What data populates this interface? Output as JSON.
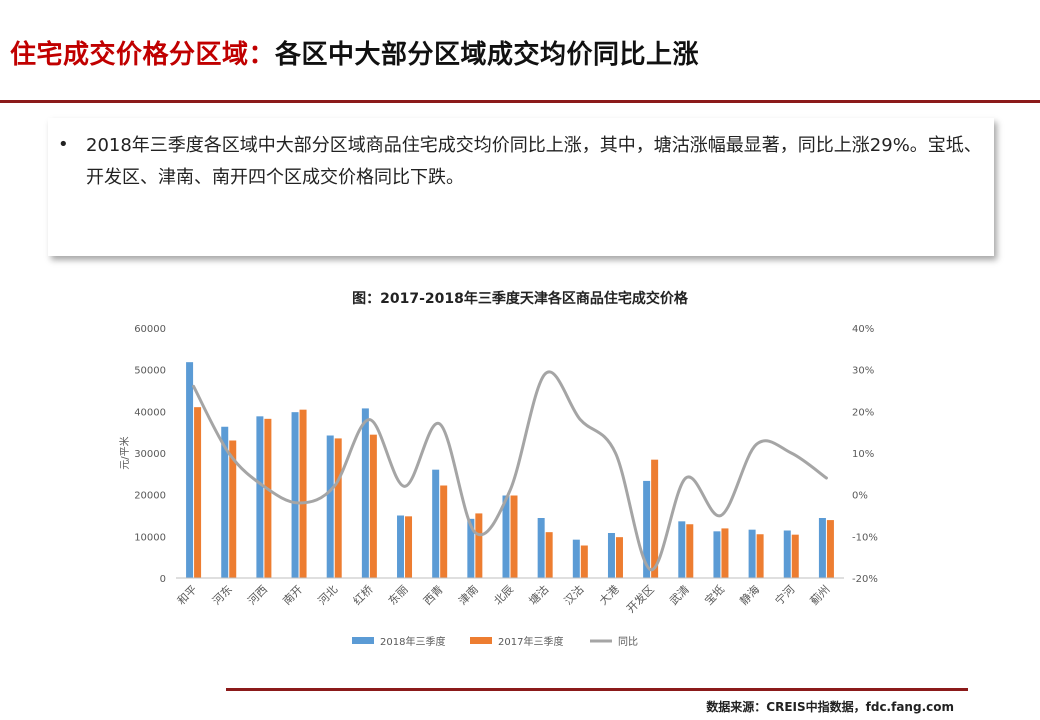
{
  "header": {
    "title_red": "住宅成交价格分区域：",
    "title_black": "各区中大部分区域成交均价同比上涨"
  },
  "note": {
    "bullet": "•",
    "text": "2018年三季度各区域中大部分区域商品住宅成交均价同比上涨，其中，塘沽涨幅最显著，同比上涨29%。宝坻、开发区、津南、南开四个区成交价格同比下跌。"
  },
  "chart_title": "图：2017-2018年三季度天津各区商品住宅成交价格",
  "chart_data": {
    "type": "bar",
    "title": "图：2017-2018年三季度天津各区商品住宅成交价格",
    "categories": [
      "和平",
      "河东",
      "河西",
      "南开",
      "河北",
      "红桥",
      "东丽",
      "西青",
      "津南",
      "北辰",
      "塘沽",
      "汉沽",
      "大港",
      "开发区",
      "武清",
      "宝坻",
      "静海",
      "宁河",
      "蓟州"
    ],
    "series": [
      {
        "name": "2018年三季度",
        "axis": "left",
        "kind": "bar",
        "color": "#5b9bd5",
        "values": [
          51800,
          36300,
          38800,
          39800,
          34200,
          40700,
          15000,
          26000,
          14200,
          19800,
          14400,
          9200,
          10800,
          23300,
          13600,
          11200,
          11600,
          11400,
          14400
        ]
      },
      {
        "name": "2017年三季度",
        "axis": "left",
        "kind": "bar",
        "color": "#ed7d31",
        "values": [
          41000,
          33000,
          38200,
          40400,
          33500,
          34400,
          14800,
          22200,
          15500,
          19800,
          11000,
          7800,
          9800,
          28400,
          12900,
          11900,
          10500,
          10400,
          13900
        ]
      },
      {
        "name": "同比",
        "axis": "right",
        "kind": "line",
        "color": "#a5a5a5",
        "values": [
          0.26,
          0.1,
          0.02,
          -0.02,
          0.02,
          0.18,
          0.02,
          0.17,
          -0.09,
          0.01,
          0.29,
          0.18,
          0.1,
          -0.18,
          0.04,
          -0.05,
          0.12,
          0.1,
          0.04
        ]
      }
    ],
    "yaxis_left": {
      "label": "元/平米",
      "min": 0,
      "max": 60000,
      "ticks": [
        "0",
        "10000",
        "20000",
        "30000",
        "40000",
        "50000",
        "60000"
      ]
    },
    "yaxis_right": {
      "min": -0.2,
      "max": 0.4,
      "ticks": [
        "-20%",
        "-10%",
        "0%",
        "10%",
        "20%",
        "30%",
        "40%"
      ]
    },
    "legend": [
      "2018年三季度",
      "2017年三季度",
      "同比"
    ],
    "legend_position": "bottom",
    "grid": false
  },
  "footer": {
    "source": "数据来源：CREIS中指数据，fdc.fang.com"
  }
}
